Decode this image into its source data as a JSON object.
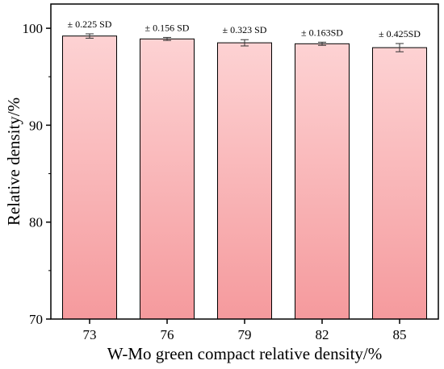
{
  "chart_data": {
    "type": "bar",
    "categories": [
      "73",
      "76",
      "79",
      "82",
      "85"
    ],
    "values": [
      99.2,
      98.9,
      98.5,
      98.4,
      98.0
    ],
    "errors": [
      0.225,
      0.156,
      0.323,
      0.163,
      0.425
    ],
    "sd_labels": [
      "± 0.225 SD",
      "± 0.156 SD",
      "± 0.323 SD",
      "± 0.163SD",
      "± 0.425SD"
    ],
    "xlabel": "W-Mo green compact relative density/%",
    "ylabel": "Relative density/%",
    "ylim": [
      70,
      102.5
    ],
    "yticks": [
      70,
      80,
      90,
      100
    ],
    "grid": false,
    "colors": {
      "bar_top": "#fdd2d3",
      "bar_bottom": "#f59a9d",
      "bar_edge": "#000000",
      "axis": "#000000"
    }
  }
}
